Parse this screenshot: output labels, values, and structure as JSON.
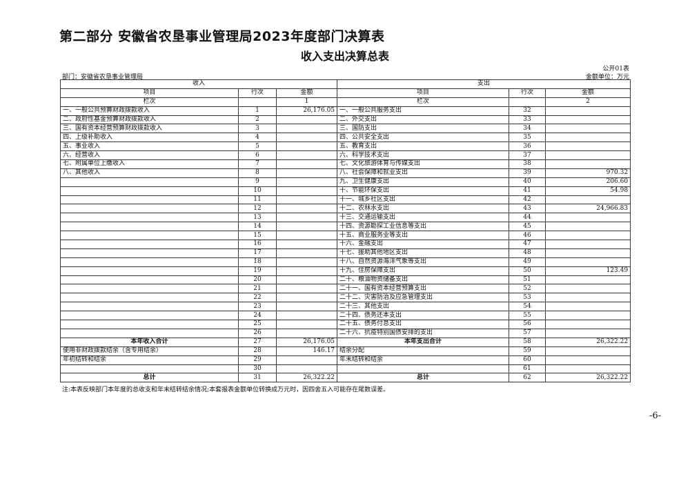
{
  "title": "第二部分  安徽省农垦事业管理局2023年度部门决算表",
  "subtitle": "收入支出决算总表",
  "table_code": "公开01表",
  "department": "部门：安徽省农垦事业管理局",
  "unit": "金额单位：万元",
  "headers": {
    "income": "收入",
    "expense": "支出",
    "item": "项目",
    "row_no": "行次",
    "amount": "金额",
    "lanci": "栏次",
    "col1": "1",
    "col2": "2"
  },
  "rows": [
    [
      "一、一般公共预算财政拨款收入",
      "1",
      "26,176.05",
      "一、一般公共服务支出",
      "32",
      ""
    ],
    [
      "二、政府性基金预算财政拨款收入",
      "2",
      "",
      "二、外交支出",
      "33",
      ""
    ],
    [
      "三、国有资本经营预算财政拨款收入",
      "3",
      "",
      "三、国防支出",
      "34",
      ""
    ],
    [
      "四、上级补助收入",
      "4",
      "",
      "四、公共安全支出",
      "35",
      ""
    ],
    [
      "五、事业收入",
      "5",
      "",
      "五、教育支出",
      "36",
      ""
    ],
    [
      "六、经营收入",
      "6",
      "",
      "六、科学技术支出",
      "37",
      ""
    ],
    [
      "七、附属单位上缴收入",
      "7",
      "",
      "七、文化旅游体育与传媒支出",
      "38",
      ""
    ],
    [
      "八、其他收入",
      "8",
      "",
      "八、社会保障和就业支出",
      "39",
      "970.32"
    ],
    [
      "",
      "9",
      "",
      "九、卫生健康支出",
      "40",
      "206.60"
    ],
    [
      "",
      "10",
      "",
      "十、节能环保支出",
      "41",
      "54.98"
    ],
    [
      "",
      "11",
      "",
      "十一、城乡社区支出",
      "42",
      ""
    ],
    [
      "",
      "12",
      "",
      "十二、农林水支出",
      "43",
      "24,966.83"
    ],
    [
      "",
      "13",
      "",
      "十三、交通运输支出",
      "44",
      ""
    ],
    [
      "",
      "14",
      "",
      "十四、资源勘探工业信息等支出",
      "45",
      ""
    ],
    [
      "",
      "15",
      "",
      "十五、商业服务业等支出",
      "46",
      ""
    ],
    [
      "",
      "16",
      "",
      "十六、金融支出",
      "47",
      ""
    ],
    [
      "",
      "17",
      "",
      "十七、援助其他地区支出",
      "48",
      ""
    ],
    [
      "",
      "18",
      "",
      "十八、自然资源海洋气象等支出",
      "49",
      ""
    ],
    [
      "",
      "19",
      "",
      "十九、住房保障支出",
      "50",
      "123.49"
    ],
    [
      "",
      "20",
      "",
      "二十、粮油物资储备支出",
      "51",
      ""
    ],
    [
      "",
      "21",
      "",
      "二十一、国有资本经营预算支出",
      "52",
      ""
    ],
    [
      "",
      "22",
      "",
      "二十二、灾害防治及应急管理支出",
      "53",
      ""
    ],
    [
      "",
      "23",
      "",
      "二十三、其他支出",
      "54",
      ""
    ],
    [
      "",
      "24",
      "",
      "二十四、债务还本支出",
      "55",
      ""
    ],
    [
      "",
      "25",
      "",
      "二十五、债务付息支出",
      "56",
      ""
    ],
    [
      "",
      "26",
      "",
      "二十六、抗疫特别国债安排的支出",
      "57",
      ""
    ]
  ],
  "summary_rows": [
    [
      "本年收入合计",
      "27",
      "26,176.05",
      "本年支出合计",
      "58",
      "26,322.22",
      true
    ],
    [
      "使用非财政拨款结余（含专用结余）",
      "28",
      "146.17",
      "结余分配",
      "59",
      "",
      false
    ],
    [
      "年初结转和结余",
      "29",
      "",
      "年末结转和结余",
      "60",
      "",
      false
    ],
    [
      "",
      "30",
      "",
      "",
      "61",
      "",
      false
    ],
    [
      "总计",
      "31",
      "26,322.22",
      "总计",
      "62",
      "26,322.22",
      true
    ]
  ],
  "note": "注:本表反映部门本年度的总收支和年末结转结余情况;本套报表金额单位转换成万元时，因四舍五入可能存在尾数误差。",
  "page_number": "-6-"
}
